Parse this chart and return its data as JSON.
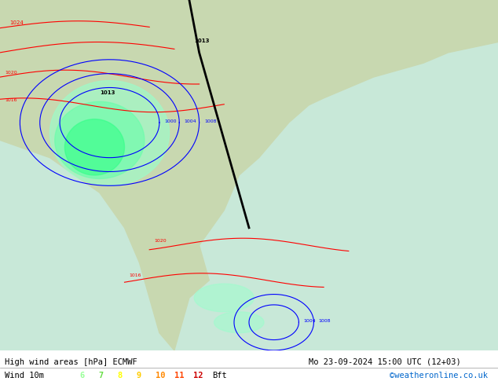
{
  "title_left": "High wind areas [hPa] ECMWF",
  "title_right": "Mo 23-09-2024 15:00 UTC (12+03)",
  "legend_label": "Wind 10m",
  "bft_label": "Bft",
  "bft_values": [
    "6",
    "7",
    "8",
    "9",
    "10",
    "11",
    "12"
  ],
  "bft_colors": [
    "#99ff99",
    "#66dd44",
    "#ffff00",
    "#ffcc00",
    "#ff8800",
    "#ff4400",
    "#cc0000"
  ],
  "copyright": "©weatheronline.co.uk",
  "copyright_color": "#0066cc",
  "bg_color": "#aaddaa",
  "map_bg": "#aaddcc",
  "bottom_bar_color": "#ffffff",
  "text_color": "#000000",
  "fig_width": 6.34,
  "fig_height": 4.9,
  "dpi": 100
}
